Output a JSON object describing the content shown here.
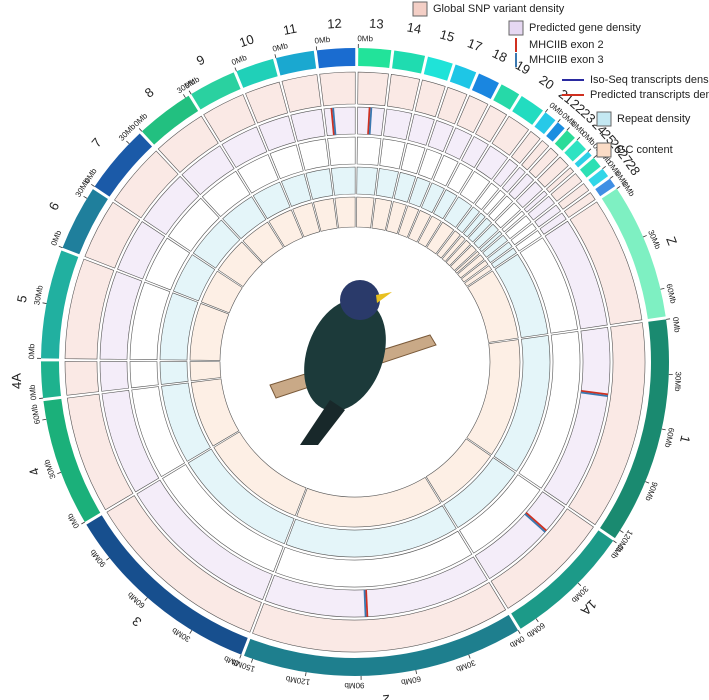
{
  "chart_data": {
    "type": "circos",
    "chromosomes": [
      {
        "name": "13",
        "length": 18,
        "color": "#22e39a",
        "ticks": [
          {
            "value": 0,
            "label": "0Mb"
          }
        ]
      },
      {
        "name": "14",
        "length": 17,
        "color": "#1fdcb0",
        "ticks": []
      },
      {
        "name": "15",
        "length": 14,
        "color": "#1fe3d8",
        "ticks": []
      },
      {
        "name": "17",
        "length": 12,
        "color": "#1ec6e6",
        "ticks": []
      },
      {
        "name": "18",
        "length": 12,
        "color": "#1a86e0",
        "ticks": []
      },
      {
        "name": "19",
        "length": 11,
        "color": "#26d9a8",
        "ticks": []
      },
      {
        "name": "20",
        "length": 14,
        "color": "#22dcc0",
        "ticks": []
      },
      {
        "name": "21",
        "length": 7,
        "color": "#27c9e8",
        "ticks": [
          {
            "value": 0,
            "label": "0Mb"
          }
        ]
      },
      {
        "name": "22",
        "length": 5,
        "color": "#1b8ee0",
        "ticks": [
          {
            "value": 0,
            "label": "0Mb"
          }
        ]
      },
      {
        "name": "23",
        "length": 6,
        "color": "#2bdc98",
        "ticks": [
          {
            "value": 0,
            "label": "0Mb"
          }
        ]
      },
      {
        "name": "24",
        "length": 7,
        "color": "#2fe3c2",
        "ticks": [
          {
            "value": 0,
            "label": "0Mb"
          }
        ]
      },
      {
        "name": "25",
        "length": 3,
        "color": "#2bd0e6",
        "ticks": [
          {
            "value": 0,
            "label": "0Mb"
          }
        ]
      },
      {
        "name": "26",
        "length": 6,
        "color": "#2ce0b4",
        "ticks": [
          {
            "value": 0,
            "label": "0Mb"
          }
        ]
      },
      {
        "name": "27",
        "length": 5,
        "color": "#31d6e8",
        "ticks": [
          {
            "value": 0,
            "label": "0Mb"
          }
        ]
      },
      {
        "name": "28",
        "length": 5,
        "color": "#3f8fe4",
        "ticks": [
          {
            "value": 0,
            "label": "0Mb"
          }
        ]
      },
      {
        "name": "Z",
        "length": 75,
        "color": "#7ef0c2",
        "ticks": [
          {
            "value": 0,
            "label": "0Mb"
          },
          {
            "value": 30,
            "label": "30Mb"
          },
          {
            "value": 60,
            "label": "60Mb"
          }
        ]
      },
      {
        "name": "1",
        "length": 125,
        "color": "#1a8a70",
        "ticks": [
          {
            "value": 0,
            "label": "0Mb"
          },
          {
            "value": 30,
            "label": "30Mb"
          },
          {
            "value": 60,
            "label": "60Mb"
          },
          {
            "value": 90,
            "label": "90Mb"
          },
          {
            "value": 120,
            "label": "120Mb"
          }
        ]
      },
      {
        "name": "1A",
        "length": 70,
        "color": "#1c9a88",
        "ticks": [
          {
            "value": 0,
            "label": "0Mb"
          },
          {
            "value": 30,
            "label": "30Mb"
          },
          {
            "value": 60,
            "label": "60Mb"
          }
        ]
      },
      {
        "name": "2",
        "length": 155,
        "color": "#1e7f8e",
        "ticks": [
          {
            "value": 0,
            "label": "0Mb"
          },
          {
            "value": 30,
            "label": "30Mb"
          },
          {
            "value": 60,
            "label": "60Mb"
          },
          {
            "value": 90,
            "label": "90Mb"
          },
          {
            "value": 120,
            "label": "120Mb"
          },
          {
            "value": 150,
            "label": "150Mb"
          }
        ]
      },
      {
        "name": "3",
        "length": 112,
        "color": "#174f8e",
        "ticks": [
          {
            "value": 0,
            "label": "0Mb"
          },
          {
            "value": 30,
            "label": "30Mb"
          },
          {
            "value": 60,
            "label": "60Mb"
          },
          {
            "value": 90,
            "label": "90Mb"
          }
        ]
      },
      {
        "name": "4",
        "length": 70,
        "color": "#1bb07a",
        "ticks": [
          {
            "value": 0,
            "label": "0Mb"
          },
          {
            "value": 30,
            "label": "30Mb"
          },
          {
            "value": 60,
            "label": "60Mb"
          }
        ]
      },
      {
        "name": "4A",
        "length": 20,
        "color": "#1eb28e",
        "ticks": [
          {
            "value": 0,
            "label": "0Mb"
          }
        ]
      },
      {
        "name": "5",
        "length": 60,
        "color": "#21b0a0",
        "ticks": [
          {
            "value": 0,
            "label": "0Mb"
          },
          {
            "value": 30,
            "label": "30Mb"
          }
        ]
      },
      {
        "name": "6",
        "length": 36,
        "color": "#1f7f9c",
        "ticks": [
          {
            "value": 0,
            "label": "0Mb"
          },
          {
            "value": 30,
            "label": "30Mb"
          }
        ]
      },
      {
        "name": "7",
        "length": 38,
        "color": "#1b5aa8",
        "ticks": [
          {
            "value": 0,
            "label": "0Mb"
          },
          {
            "value": 30,
            "label": "30Mb"
          }
        ]
      },
      {
        "name": "8",
        "length": 32,
        "color": "#22c080",
        "ticks": [
          {
            "value": 0,
            "label": "0Mb"
          },
          {
            "value": 30,
            "label": "30Mb"
          }
        ]
      },
      {
        "name": "9",
        "length": 26,
        "color": "#2ad1a0",
        "ticks": [
          {
            "value": 0,
            "label": "0Mb"
          }
        ]
      },
      {
        "name": "10",
        "length": 21,
        "color": "#20d0b8",
        "ticks": [
          {
            "value": 0,
            "label": "0Mb"
          }
        ]
      },
      {
        "name": "11",
        "length": 21,
        "color": "#1aa8d0",
        "ticks": [
          {
            "value": 0,
            "label": "0Mb"
          }
        ]
      },
      {
        "name": "12",
        "length": 21,
        "color": "#1a6cd0",
        "ticks": [
          {
            "value": 0,
            "label": "0Mb"
          }
        ]
      }
    ],
    "tracks": [
      {
        "name": "Global SNP variant density",
        "color": "#f4cfc6"
      },
      {
        "name": "Predicted gene density",
        "color": "#e6d8f2"
      },
      {
        "name": "Iso-Seq transcripts density",
        "color": "#2a2aa0"
      },
      {
        "name": "Predicted transcripts density",
        "color": "#d03020"
      },
      {
        "name": "Repeat density",
        "color": "#c4e8f2"
      },
      {
        "name": "GC content",
        "color": "#fbdcc6"
      }
    ],
    "markers": [
      {
        "name": "MHCIIB exon 2",
        "color": "#d03020"
      },
      {
        "name": "MHCIIB exon 3",
        "color": "#3a78b0"
      }
    ],
    "marker_positions": [
      {
        "chromosome": 29,
        "position": 5
      },
      {
        "chromosome": 0,
        "position": 8
      },
      {
        "chromosome": 16,
        "position": 45
      },
      {
        "chromosome": 17,
        "position": 20
      },
      {
        "chromosome": 18,
        "position": 85
      }
    ]
  }
}
